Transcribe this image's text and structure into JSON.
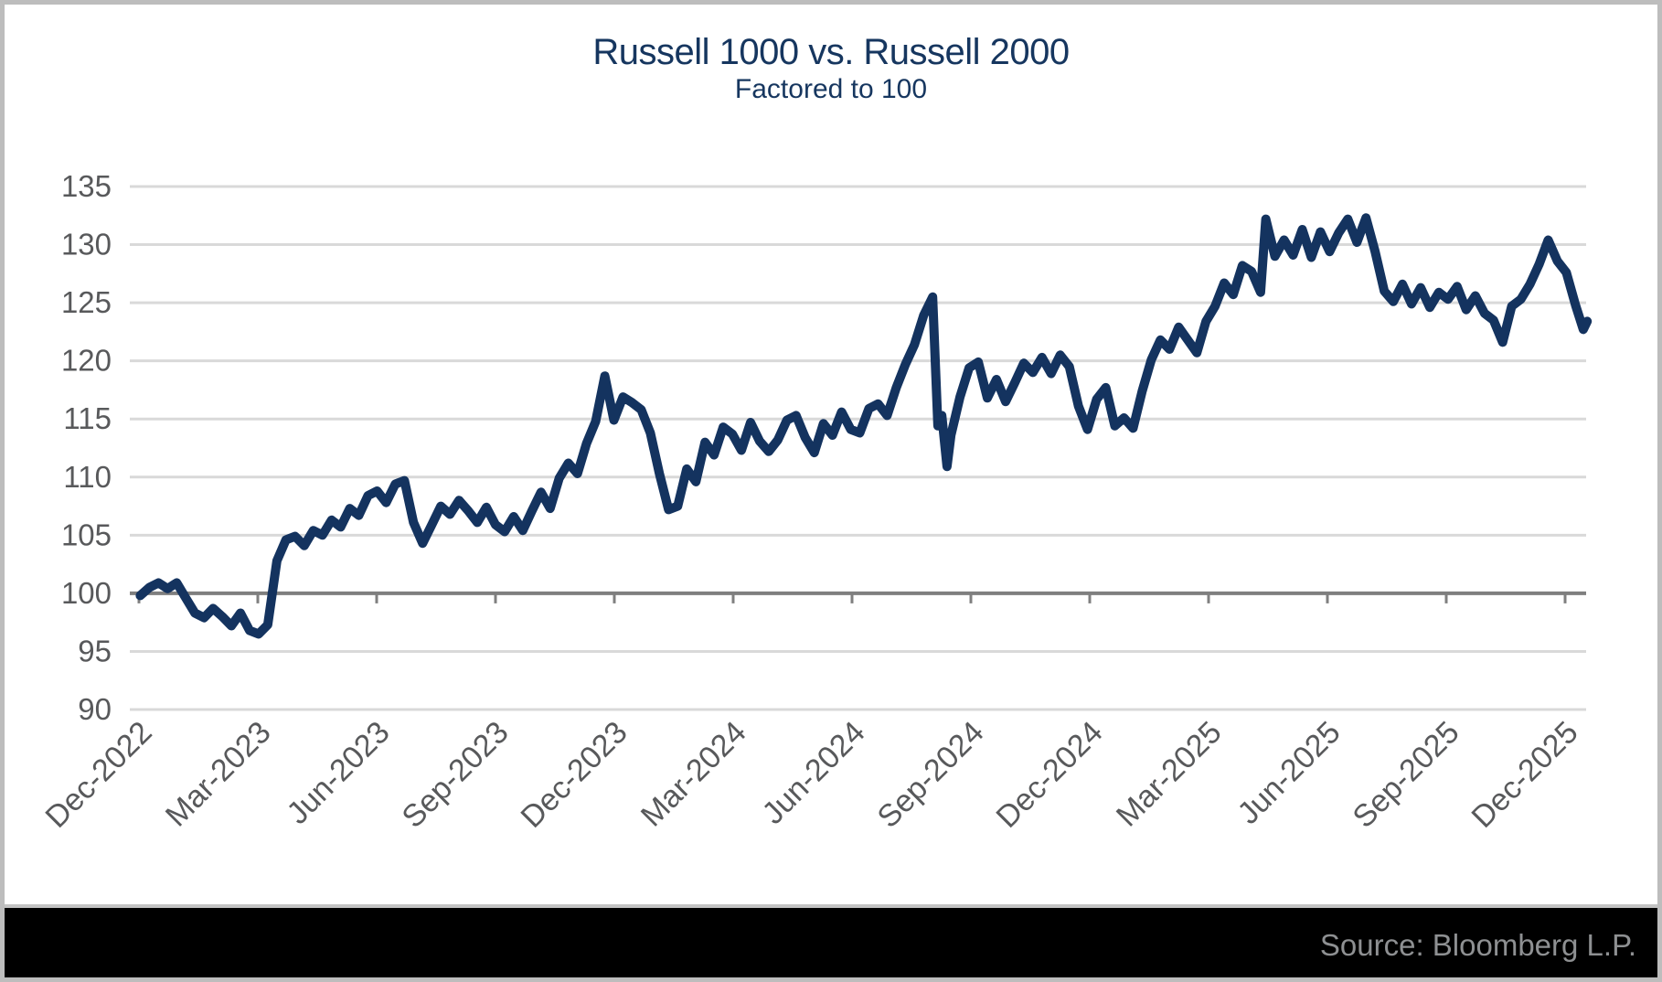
{
  "header": {
    "title": "Russell 1000 vs. Russell 2000",
    "subtitle": "Factored to 100"
  },
  "footer": {
    "source_label": "Source: Bloomberg L.P."
  },
  "colors": {
    "title_navy": "#16365f",
    "line_navy": "#14335f",
    "gridline": "#d9d9d9",
    "baseline_axis": "#7f7f7f",
    "axis_label": "#58595b",
    "frame_border": "#bdbdbd",
    "footer_bar": "#000000",
    "footer_text": "#8e9092"
  },
  "chart_data": {
    "type": "line",
    "title": "Russell 1000 vs. Russell 2000",
    "subtitle": "Factored to 100",
    "xlabel": "",
    "ylabel": "",
    "ylim": [
      90,
      135
    ],
    "y_ticks": [
      90,
      95,
      100,
      105,
      110,
      115,
      120,
      125,
      130,
      135
    ],
    "baseline": 100,
    "grid": "horizontal",
    "legend": "none",
    "x_tick_labels": [
      "Dec-2022",
      "Mar-2023",
      "Jun-2023",
      "Sep-2023",
      "Dec-2023",
      "Mar-2024",
      "Jun-2024",
      "Sep-2024",
      "Dec-2024",
      "Mar-2025",
      "Jun-2025",
      "Sep-2025",
      "Dec-2025"
    ],
    "x_label_rotation_deg": 45,
    "series": [
      {
        "name": "Russell 1000 vs. Russell 2000 (factored to 100)",
        "color": "#14335f",
        "points": [
          [
            "2022-12-02",
            99.8
          ],
          [
            "2022-12-09",
            100.5
          ],
          [
            "2022-12-16",
            100.9
          ],
          [
            "2022-12-23",
            100.4
          ],
          [
            "2022-12-30",
            100.9
          ],
          [
            "2023-01-06",
            99.6
          ],
          [
            "2023-01-13",
            98.3
          ],
          [
            "2023-01-20",
            97.9
          ],
          [
            "2023-01-27",
            98.7
          ],
          [
            "2023-02-03",
            98.0
          ],
          [
            "2023-02-10",
            97.2
          ],
          [
            "2023-02-17",
            98.3
          ],
          [
            "2023-02-24",
            96.8
          ],
          [
            "2023-03-03",
            96.5
          ],
          [
            "2023-03-10",
            97.3
          ],
          [
            "2023-03-17",
            102.8
          ],
          [
            "2023-03-24",
            104.6
          ],
          [
            "2023-03-31",
            104.9
          ],
          [
            "2023-04-07",
            104.1
          ],
          [
            "2023-04-14",
            105.4
          ],
          [
            "2023-04-21",
            105.0
          ],
          [
            "2023-04-28",
            106.3
          ],
          [
            "2023-05-05",
            105.7
          ],
          [
            "2023-05-12",
            107.3
          ],
          [
            "2023-05-19",
            106.7
          ],
          [
            "2023-05-26",
            108.4
          ],
          [
            "2023-06-02",
            108.8
          ],
          [
            "2023-06-09",
            107.8
          ],
          [
            "2023-06-16",
            109.4
          ],
          [
            "2023-06-23",
            109.7
          ],
          [
            "2023-06-30",
            106.1
          ],
          [
            "2023-07-07",
            104.3
          ],
          [
            "2023-07-14",
            105.9
          ],
          [
            "2023-07-21",
            107.5
          ],
          [
            "2023-07-28",
            106.8
          ],
          [
            "2023-08-04",
            108.0
          ],
          [
            "2023-08-11",
            107.1
          ],
          [
            "2023-08-18",
            106.1
          ],
          [
            "2023-08-25",
            107.4
          ],
          [
            "2023-09-01",
            105.9
          ],
          [
            "2023-09-08",
            105.3
          ],
          [
            "2023-09-15",
            106.6
          ],
          [
            "2023-09-22",
            105.4
          ],
          [
            "2023-09-29",
            107.1
          ],
          [
            "2023-10-06",
            108.7
          ],
          [
            "2023-10-13",
            107.3
          ],
          [
            "2023-10-20",
            109.9
          ],
          [
            "2023-10-27",
            111.2
          ],
          [
            "2023-11-03",
            110.3
          ],
          [
            "2023-11-10",
            112.9
          ],
          [
            "2023-11-17",
            114.8
          ],
          [
            "2023-11-24",
            118.7
          ],
          [
            "2023-12-01",
            114.9
          ],
          [
            "2023-12-08",
            116.9
          ],
          [
            "2023-12-15",
            116.4
          ],
          [
            "2023-12-22",
            115.8
          ],
          [
            "2023-12-29",
            113.8
          ],
          [
            "2024-01-05",
            110.3
          ],
          [
            "2024-01-12",
            107.2
          ],
          [
            "2024-01-19",
            107.5
          ],
          [
            "2024-01-26",
            110.7
          ],
          [
            "2024-02-02",
            109.6
          ],
          [
            "2024-02-09",
            113.0
          ],
          [
            "2024-02-16",
            111.9
          ],
          [
            "2024-02-23",
            114.3
          ],
          [
            "2024-03-01",
            113.7
          ],
          [
            "2024-03-08",
            112.3
          ],
          [
            "2024-03-15",
            114.7
          ],
          [
            "2024-03-22",
            113.1
          ],
          [
            "2024-03-29",
            112.2
          ],
          [
            "2024-04-05",
            113.2
          ],
          [
            "2024-04-12",
            114.9
          ],
          [
            "2024-04-19",
            115.3
          ],
          [
            "2024-04-26",
            113.4
          ],
          [
            "2024-05-03",
            112.1
          ],
          [
            "2024-05-10",
            114.6
          ],
          [
            "2024-05-17",
            113.6
          ],
          [
            "2024-05-24",
            115.6
          ],
          [
            "2024-05-31",
            114.1
          ],
          [
            "2024-06-07",
            113.8
          ],
          [
            "2024-06-14",
            115.9
          ],
          [
            "2024-06-21",
            116.3
          ],
          [
            "2024-06-28",
            115.3
          ],
          [
            "2024-07-05",
            117.7
          ],
          [
            "2024-07-12",
            119.7
          ],
          [
            "2024-07-19",
            121.4
          ],
          [
            "2024-07-26",
            123.9
          ],
          [
            "2024-08-02",
            125.5
          ],
          [
            "2024-08-06",
            114.4
          ],
          [
            "2024-08-09",
            115.3
          ],
          [
            "2024-08-13",
            110.9
          ],
          [
            "2024-08-16",
            113.6
          ],
          [
            "2024-08-23",
            116.9
          ],
          [
            "2024-08-30",
            119.4
          ],
          [
            "2024-09-06",
            119.9
          ],
          [
            "2024-09-13",
            116.8
          ],
          [
            "2024-09-20",
            118.4
          ],
          [
            "2024-09-27",
            116.5
          ],
          [
            "2024-10-04",
            118.1
          ],
          [
            "2024-10-11",
            119.8
          ],
          [
            "2024-10-18",
            119.0
          ],
          [
            "2024-10-25",
            120.3
          ],
          [
            "2024-11-01",
            118.9
          ],
          [
            "2024-11-08",
            120.5
          ],
          [
            "2024-11-15",
            119.5
          ],
          [
            "2024-11-22",
            116.1
          ],
          [
            "2024-11-29",
            114.1
          ],
          [
            "2024-12-06",
            116.7
          ],
          [
            "2024-12-13",
            117.7
          ],
          [
            "2024-12-20",
            114.4
          ],
          [
            "2024-12-27",
            115.1
          ],
          [
            "2025-01-03",
            114.2
          ],
          [
            "2025-01-10",
            117.4
          ],
          [
            "2025-01-17",
            120.1
          ],
          [
            "2025-01-24",
            121.8
          ],
          [
            "2025-01-31",
            121.0
          ],
          [
            "2025-02-07",
            122.9
          ],
          [
            "2025-02-14",
            121.8
          ],
          [
            "2025-02-21",
            120.7
          ],
          [
            "2025-02-28",
            123.4
          ],
          [
            "2025-03-07",
            124.7
          ],
          [
            "2025-03-14",
            126.7
          ],
          [
            "2025-03-21",
            125.7
          ],
          [
            "2025-03-28",
            128.2
          ],
          [
            "2025-04-04",
            127.7
          ],
          [
            "2025-04-11",
            125.9
          ],
          [
            "2025-04-15",
            132.2
          ],
          [
            "2025-04-22",
            129.0
          ],
          [
            "2025-04-29",
            130.4
          ],
          [
            "2025-05-06",
            129.1
          ],
          [
            "2025-05-13",
            131.3
          ],
          [
            "2025-05-20",
            128.9
          ],
          [
            "2025-05-27",
            131.1
          ],
          [
            "2025-06-03",
            129.4
          ],
          [
            "2025-06-10",
            131.0
          ],
          [
            "2025-06-17",
            132.2
          ],
          [
            "2025-06-24",
            130.2
          ],
          [
            "2025-07-01",
            132.3
          ],
          [
            "2025-07-08",
            129.4
          ],
          [
            "2025-07-15",
            126.0
          ],
          [
            "2025-07-22",
            125.1
          ],
          [
            "2025-07-29",
            126.6
          ],
          [
            "2025-08-05",
            124.9
          ],
          [
            "2025-08-12",
            126.3
          ],
          [
            "2025-08-19",
            124.6
          ],
          [
            "2025-08-26",
            125.9
          ],
          [
            "2025-09-02",
            125.3
          ],
          [
            "2025-09-09",
            126.4
          ],
          [
            "2025-09-16",
            124.4
          ],
          [
            "2025-09-23",
            125.6
          ],
          [
            "2025-09-30",
            124.1
          ],
          [
            "2025-10-07",
            123.5
          ],
          [
            "2025-10-14",
            121.6
          ],
          [
            "2025-10-21",
            124.7
          ],
          [
            "2025-10-28",
            125.3
          ],
          [
            "2025-11-04",
            126.6
          ],
          [
            "2025-11-11",
            128.3
          ],
          [
            "2025-11-18",
            130.4
          ],
          [
            "2025-11-25",
            128.6
          ],
          [
            "2025-12-02",
            127.6
          ],
          [
            "2025-12-09",
            124.8
          ],
          [
            "2025-12-15",
            122.7
          ],
          [
            "2025-12-18",
            123.4
          ]
        ]
      }
    ]
  }
}
